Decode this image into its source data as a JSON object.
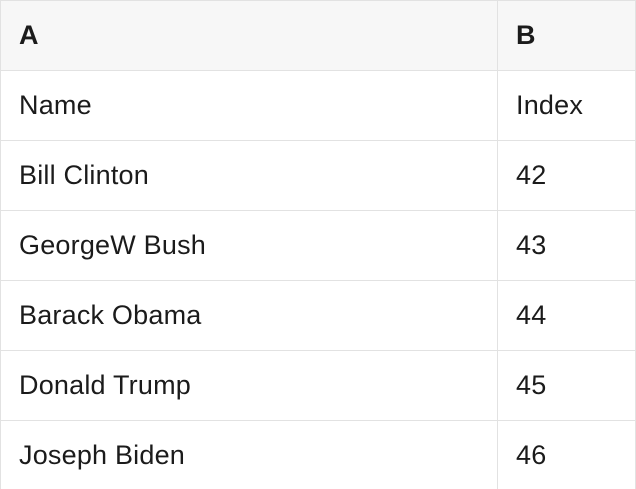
{
  "colors": {
    "header_background": "#f7f7f7",
    "row_background": "#ffffff",
    "border": "#e2e2e2",
    "text": "#1b1b1b"
  },
  "table": {
    "columns": [
      {
        "label": "A"
      },
      {
        "label": "B"
      }
    ],
    "rows": [
      [
        "Name",
        "Index"
      ],
      [
        "Bill Clinton",
        "42"
      ],
      [
        "GeorgeW Bush",
        "43"
      ],
      [
        "Barack Obama",
        "44"
      ],
      [
        "Donald Trump",
        "45"
      ],
      [
        "Joseph Biden",
        "46"
      ]
    ]
  }
}
